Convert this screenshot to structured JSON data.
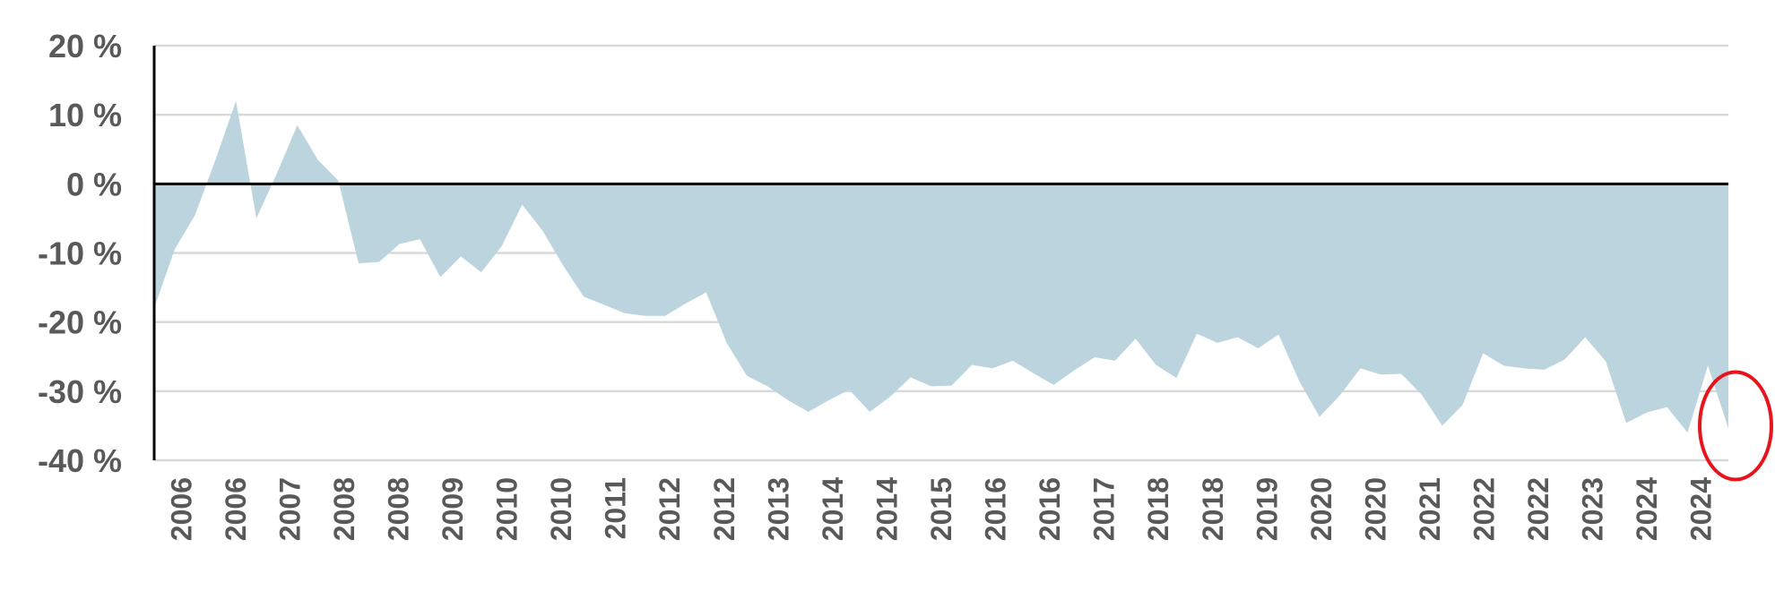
{
  "chart_data": {
    "type": "area",
    "title": "",
    "xlabel": "",
    "ylabel": "",
    "ylim": [
      -40,
      20
    ],
    "yticks": [
      20,
      10,
      0,
      -10,
      -20,
      -30,
      -40
    ],
    "ytick_labels": [
      "20 %",
      "10 %",
      "0 %",
      "-10 %",
      "-20 %",
      "-30 %",
      "-40 %"
    ],
    "xtick_labels": [
      "2006",
      "2006",
      "2007",
      "2008",
      "2008",
      "2009",
      "2010",
      "2010",
      "2011",
      "2012",
      "2012",
      "2013",
      "2014",
      "2014",
      "2015",
      "2016",
      "2016",
      "2017",
      "2018",
      "2018",
      "2019",
      "2020",
      "2020",
      "2021",
      "2022",
      "2022",
      "2023",
      "2024",
      "2024"
    ],
    "grid": true,
    "series": [
      {
        "values": [
          -18,
          -9.5,
          -4.5,
          3.5,
          12,
          -5,
          1.5,
          8.5,
          3.5,
          0.5,
          -11.5,
          -11.3,
          -8.7,
          -8,
          -13.5,
          -10.5,
          -12.8,
          -9,
          -3,
          -6.8,
          -11.8,
          -16.3,
          -17.5,
          -18.7,
          -19.1,
          -19.1,
          -17.3,
          -15.7,
          -23,
          -27.8,
          -29.3,
          -31.3,
          -33,
          -31.3,
          -29.8,
          -33,
          -30.8,
          -28,
          -29.3,
          -29.2,
          -26.2,
          -26.7,
          -25.6,
          -27.4,
          -29.1,
          -27,
          -25.1,
          -25.6,
          -22.4,
          -26.2,
          -28.1,
          -21.7,
          -23,
          -22.2,
          -23.8,
          -21.8,
          -28.5,
          -33.7,
          -30.6,
          -26.7,
          -27.6,
          -27.5,
          -30.5,
          -35,
          -32,
          -24.5,
          -26.3,
          -26.7,
          -26.9,
          -25.4,
          -22.2,
          -25.7,
          -34.6,
          -33.1,
          -32.3,
          -36,
          -26.3,
          -35.4
        ],
        "color": "#bcd4de"
      }
    ],
    "annotations": [
      {
        "type": "ellipse",
        "target": "latest value",
        "color": "#e8141c"
      }
    ]
  }
}
